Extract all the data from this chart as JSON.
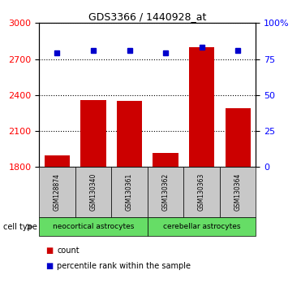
{
  "title": "GDS3366 / 1440928_at",
  "samples": [
    "GSM128874",
    "GSM130340",
    "GSM130361",
    "GSM130362",
    "GSM130363",
    "GSM130364"
  ],
  "counts": [
    1900,
    2360,
    2350,
    1920,
    2800,
    2290
  ],
  "percentile_ranks": [
    79,
    81,
    81,
    79,
    83,
    81
  ],
  "ylim_left": [
    1800,
    3000
  ],
  "ylim_right": [
    0,
    100
  ],
  "yticks_left": [
    1800,
    2100,
    2400,
    2700,
    3000
  ],
  "yticks_right": [
    0,
    25,
    50,
    75,
    100
  ],
  "bar_color": "#cc0000",
  "dot_color": "#0000cc",
  "bar_width": 0.7,
  "cell_type_label": "cell type",
  "legend_count_label": "count",
  "legend_percentile_label": "percentile rank within the sample",
  "grid_color": "black",
  "tick_area_color": "#c8c8c8",
  "green_color": "#66dd66",
  "neocortical_label": "neocortical astrocytes",
  "cerebellar_label": "cerebellar astrocytes"
}
